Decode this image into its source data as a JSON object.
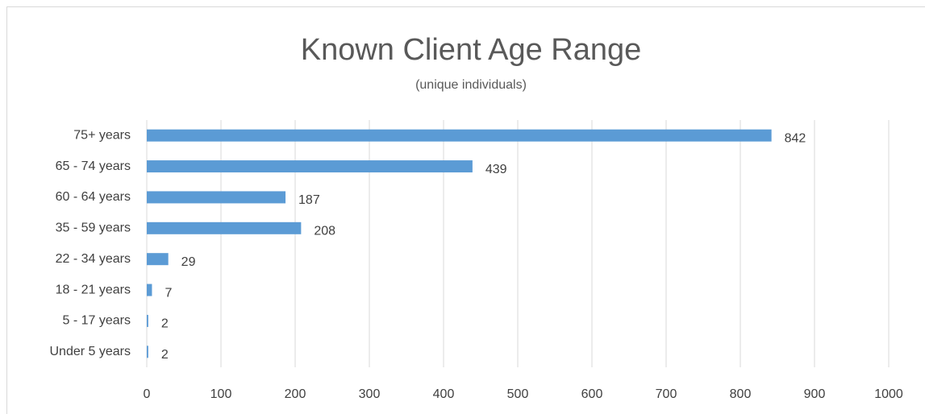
{
  "chart_data": {
    "type": "bar",
    "orientation": "horizontal",
    "title": "Known Client Age Range",
    "subtitle": "(unique individuals)",
    "categories": [
      "75+ years",
      "65 - 74 years",
      "60 - 64 years",
      "35 - 59 years",
      "22 - 34 years",
      "18 - 21 years",
      "5 - 17 years",
      "Under 5 years"
    ],
    "values": [
      842,
      439,
      187,
      208,
      29,
      7,
      2,
      2
    ],
    "color": "#5b9bd5",
    "xlim": [
      0,
      1000
    ],
    "xticks": [
      0,
      100,
      200,
      300,
      400,
      500,
      600,
      700,
      800,
      900,
      1000
    ],
    "grid": true
  }
}
